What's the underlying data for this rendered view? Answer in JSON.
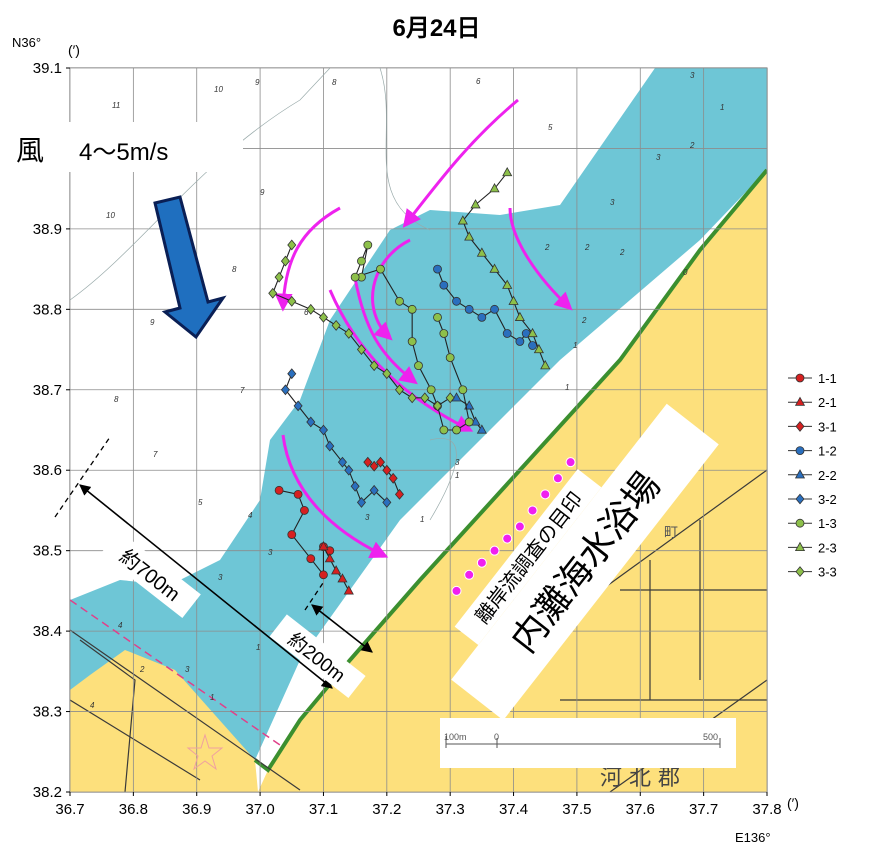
{
  "title": "6月24日",
  "axis": {
    "lat_prefix": "N36°",
    "lat_unit": "(′)",
    "lon_unit": "(′)",
    "lon_prefix": "E136°",
    "lat_ticks": [
      "39.1",
      "39.0",
      "38.9",
      "38.8",
      "38.7",
      "38.6",
      "38.5",
      "38.4",
      "38.3",
      "38.2"
    ],
    "lon_ticks": [
      "36.7",
      "36.8",
      "36.9",
      "37.0",
      "37.1",
      "37.2",
      "37.3",
      "37.4",
      "37.5",
      "37.6",
      "37.7",
      "37.8"
    ],
    "lat_range": [
      38.2,
      39.1
    ],
    "lon_range": [
      36.7,
      37.8
    ]
  },
  "wind": {
    "label": "風",
    "speed": "4～5m/s"
  },
  "annotations": {
    "dist_700": "約700m",
    "dist_200": "約200m",
    "beach": "内灘海水浴場",
    "markers_label": "離岸流調査の目印",
    "district": "河 北 郡",
    "town": "町",
    "scale_left": "100m",
    "scale_zero": "0",
    "scale_right": "500"
  },
  "legend": [
    {
      "label": "1-1",
      "color": "#d62020",
      "marker": "circle"
    },
    {
      "label": "2-1",
      "color": "#d62020",
      "marker": "triangle"
    },
    {
      "label": "3-1",
      "color": "#d62020",
      "marker": "diamond"
    },
    {
      "label": "1-2",
      "color": "#2a6fbe",
      "marker": "circle"
    },
    {
      "label": "2-2",
      "color": "#2a6fbe",
      "marker": "triangle"
    },
    {
      "label": "3-2",
      "color": "#2a6fbe",
      "marker": "diamond"
    },
    {
      "label": "1-3",
      "color": "#8dc04a",
      "marker": "circle"
    },
    {
      "label": "2-3",
      "color": "#8dc04a",
      "marker": "triangle"
    },
    {
      "label": "3-3",
      "color": "#8dc04a",
      "marker": "diamond"
    }
  ],
  "colors": {
    "sea": "#6ec6d6",
    "land": "#fde07c",
    "white_zone": "#ffffff",
    "current_arrow": "#ee22ee",
    "wind_arrow": "#1f6fbf",
    "grid": "#8c8c8c"
  },
  "tracks": [
    {
      "id": "1-1",
      "points": [
        [
          37.03,
          38.575
        ],
        [
          37.06,
          38.57
        ],
        [
          37.07,
          38.55
        ],
        [
          37.05,
          38.52
        ],
        [
          37.08,
          38.49
        ],
        [
          37.1,
          38.47
        ],
        [
          37.1,
          38.505
        ],
        [
          37.11,
          38.5
        ]
      ]
    },
    {
      "id": "2-1",
      "points": [
        [
          37.1,
          38.505
        ],
        [
          37.11,
          38.49
        ],
        [
          37.12,
          38.475
        ],
        [
          37.13,
          38.465
        ],
        [
          37.14,
          38.45
        ]
      ]
    },
    {
      "id": "3-1",
      "points": [
        [
          37.17,
          38.61
        ],
        [
          37.18,
          38.605
        ],
        [
          37.19,
          38.61
        ],
        [
          37.2,
          38.6
        ],
        [
          37.21,
          38.59
        ],
        [
          37.22,
          38.57
        ]
      ]
    },
    {
      "id": "1-2",
      "points": [
        [
          37.28,
          38.85
        ],
        [
          37.29,
          38.83
        ],
        [
          37.31,
          38.81
        ],
        [
          37.33,
          38.8
        ],
        [
          37.35,
          38.79
        ],
        [
          37.37,
          38.8
        ],
        [
          37.39,
          38.77
        ],
        [
          37.41,
          38.76
        ],
        [
          37.42,
          38.77
        ],
        [
          37.43,
          38.755
        ]
      ]
    },
    {
      "id": "2-2",
      "points": [
        [
          37.31,
          38.69
        ],
        [
          37.33,
          38.68
        ],
        [
          37.34,
          38.66
        ],
        [
          37.35,
          38.65
        ]
      ]
    },
    {
      "id": "3-2",
      "points": [
        [
          37.05,
          38.72
        ],
        [
          37.04,
          38.7
        ],
        [
          37.06,
          38.68
        ],
        [
          37.08,
          38.66
        ],
        [
          37.1,
          38.65
        ],
        [
          37.11,
          38.63
        ],
        [
          37.13,
          38.61
        ],
        [
          37.14,
          38.6
        ],
        [
          37.15,
          38.58
        ],
        [
          37.16,
          38.56
        ],
        [
          37.18,
          38.575
        ],
        [
          37.2,
          38.56
        ]
      ]
    },
    {
      "id": "1-3",
      "points": [
        [
          37.16,
          38.84
        ],
        [
          37.17,
          38.88
        ],
        [
          37.16,
          38.86
        ],
        [
          37.15,
          38.84
        ],
        [
          37.19,
          38.85
        ],
        [
          37.22,
          38.81
        ],
        [
          37.24,
          38.8
        ],
        [
          37.24,
          38.76
        ],
        [
          37.25,
          38.73
        ],
        [
          37.27,
          38.7
        ],
        [
          37.28,
          38.68
        ],
        [
          37.29,
          38.65
        ],
        [
          37.31,
          38.65
        ],
        [
          37.33,
          38.66
        ],
        [
          37.32,
          38.7
        ],
        [
          37.3,
          38.74
        ],
        [
          37.29,
          38.77
        ],
        [
          37.28,
          38.79
        ]
      ]
    },
    {
      "id": "2-3",
      "points": [
        [
          37.39,
          38.97
        ],
        [
          37.37,
          38.95
        ],
        [
          37.34,
          38.93
        ],
        [
          37.32,
          38.91
        ],
        [
          37.33,
          38.89
        ],
        [
          37.35,
          38.87
        ],
        [
          37.37,
          38.85
        ],
        [
          37.39,
          38.83
        ],
        [
          37.4,
          38.81
        ],
        [
          37.41,
          38.79
        ],
        [
          37.43,
          38.77
        ],
        [
          37.44,
          38.75
        ],
        [
          37.45,
          38.73
        ]
      ]
    },
    {
      "id": "3-3",
      "points": [
        [
          37.05,
          38.88
        ],
        [
          37.04,
          38.86
        ],
        [
          37.03,
          38.84
        ],
        [
          37.02,
          38.82
        ],
        [
          37.05,
          38.81
        ],
        [
          37.08,
          38.8
        ],
        [
          37.1,
          38.79
        ],
        [
          37.12,
          38.78
        ],
        [
          37.14,
          38.77
        ],
        [
          37.16,
          38.75
        ],
        [
          37.18,
          38.73
        ],
        [
          37.2,
          38.72
        ],
        [
          37.22,
          38.7
        ],
        [
          37.24,
          38.69
        ],
        [
          37.26,
          38.69
        ],
        [
          37.28,
          38.68
        ],
        [
          37.3,
          38.69
        ]
      ]
    }
  ],
  "marker_points": [
    [
      37.31,
      38.45
    ],
    [
      37.33,
      38.47
    ],
    [
      37.35,
      38.485
    ],
    [
      37.37,
      38.5
    ],
    [
      37.39,
      38.515
    ],
    [
      37.41,
      38.53
    ],
    [
      37.43,
      38.55
    ],
    [
      37.45,
      38.57
    ],
    [
      37.47,
      38.59
    ],
    [
      37.49,
      38.61
    ]
  ]
}
